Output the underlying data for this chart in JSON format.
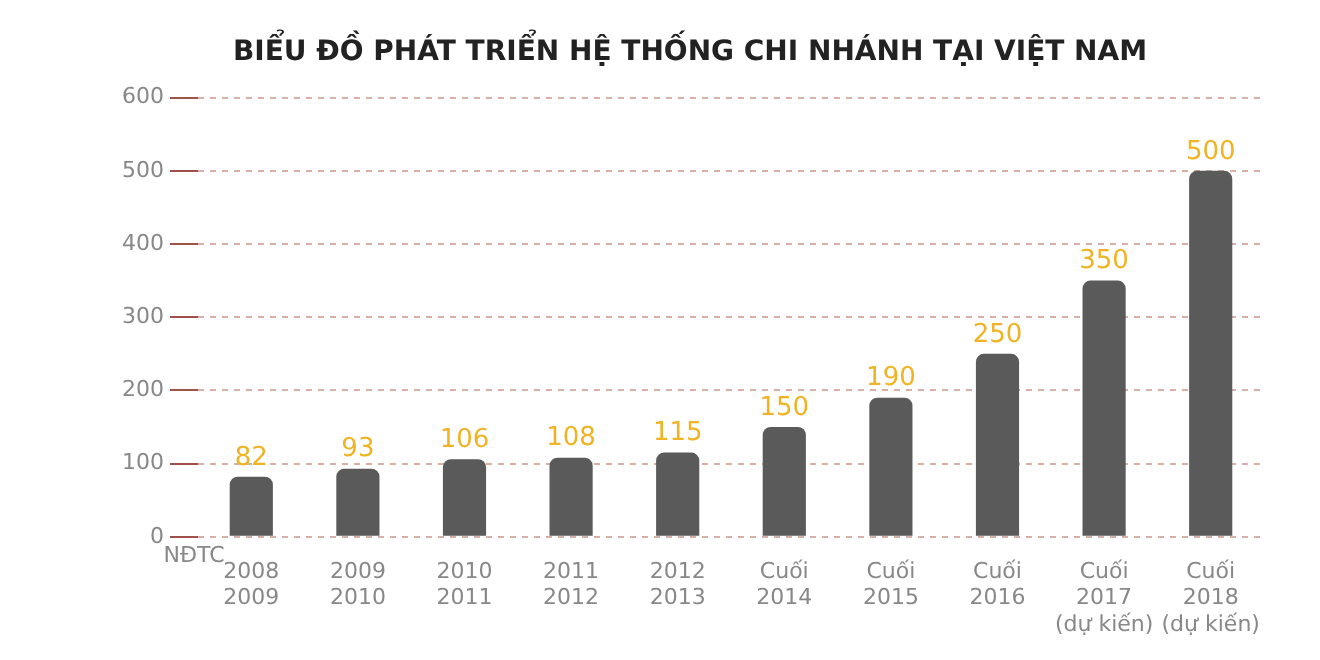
{
  "chart_data": {
    "type": "bar",
    "title": "BIỂU ĐỒ PHÁT TRIỂN HỆ THỐNG CHI NHÁNH TẠI VIỆT NAM",
    "xlabel": "NĐTC",
    "categories": [
      "2008\n2009",
      "2009\n2010",
      "2010\n2011",
      "2011\n2012",
      "2012\n2013",
      "Cuối\n2014",
      "Cuối\n2015",
      "Cuối\n2016",
      "Cuối\n2017\n(dự kiến)",
      "Cuối\n2018\n(dự kiến)"
    ],
    "values": [
      82,
      93,
      106,
      108,
      115,
      150,
      190,
      250,
      350,
      500
    ],
    "color": "#5a5a5a",
    "ylim": [
      0,
      600
    ],
    "yticks": [
      0,
      100,
      200,
      300,
      400,
      500,
      600
    ],
    "grid": "y",
    "data_labels": true,
    "legend": false
  }
}
